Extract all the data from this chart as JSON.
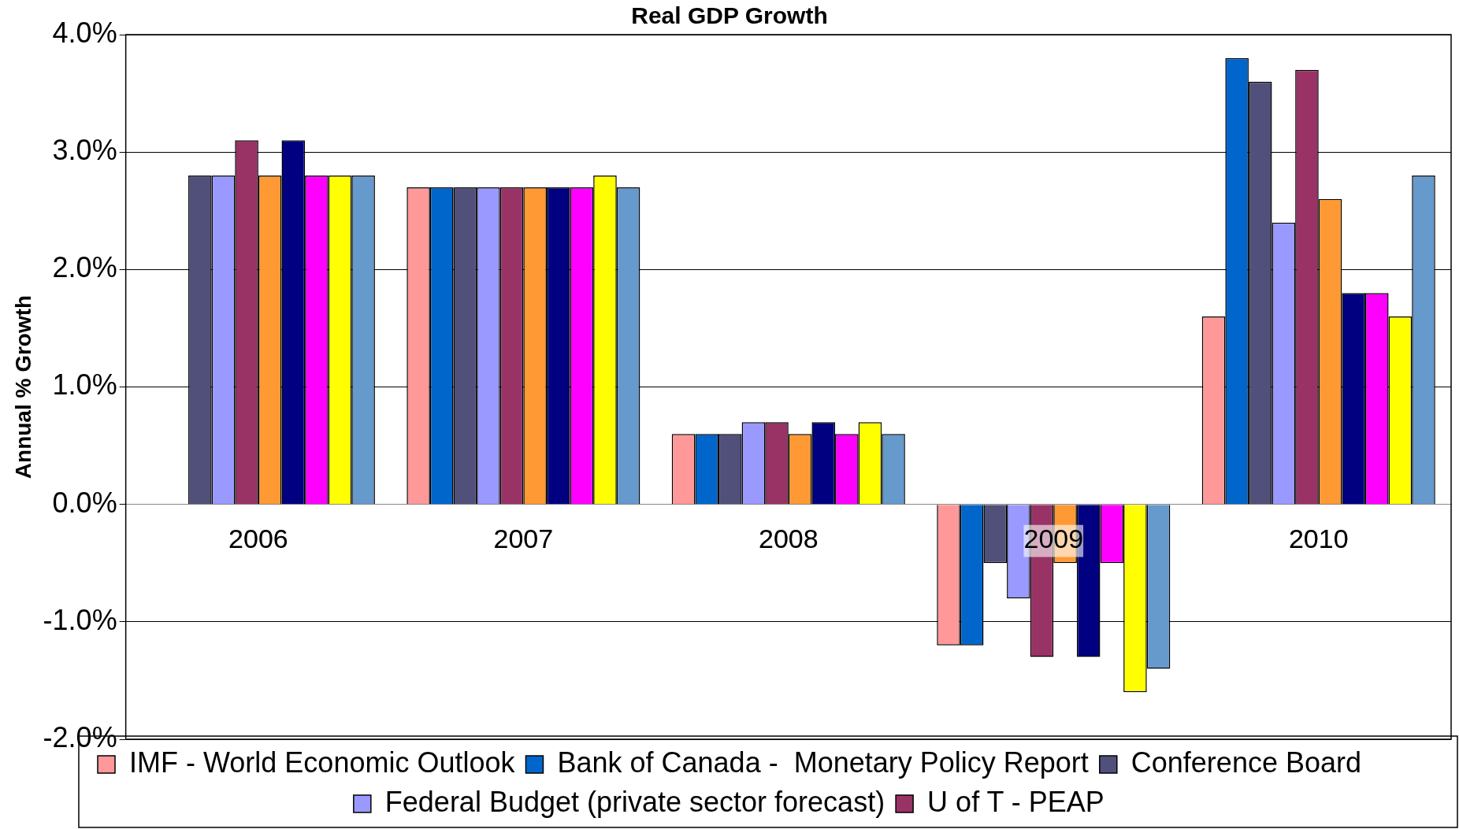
{
  "chart_data": {
    "type": "bar",
    "title": "Real GDP Growth",
    "ylabel": "Annual % Growth",
    "categories": [
      "2006",
      "2007",
      "2008",
      "2009",
      "2010"
    ],
    "series": [
      {
        "name": "IMF - World Economic Outlook",
        "color": "#ff9999",
        "values": [
          null,
          2.7,
          0.6,
          -1.2,
          1.6
        ]
      },
      {
        "name": "Bank of Canada -  Monetary Policy Report",
        "color": "#0066cc",
        "values": [
          null,
          2.7,
          0.6,
          -1.2,
          3.8
        ]
      },
      {
        "name": "Conference Board",
        "color": "#50507a",
        "values": [
          2.8,
          2.7,
          0.6,
          -0.5,
          3.6
        ]
      },
      {
        "name": "Federal Budget (private sector forecast)",
        "color": "#9999ff",
        "values": [
          2.8,
          2.7,
          0.7,
          -0.8,
          2.4
        ]
      },
      {
        "name": "U of T - PEAP",
        "color": "#993366",
        "values": [
          3.1,
          2.7,
          0.7,
          -1.3,
          3.7
        ]
      },
      {
        "color": "#ff9933",
        "values": [
          2.8,
          2.7,
          0.6,
          -0.5,
          2.6
        ]
      },
      {
        "color": "#000080",
        "values": [
          3.1,
          2.7,
          0.7,
          -1.3,
          1.8
        ]
      },
      {
        "color": "#ff00ff",
        "values": [
          2.8,
          2.7,
          0.6,
          -0.5,
          1.8
        ]
      },
      {
        "color": "#ffff00",
        "values": [
          2.8,
          2.8,
          0.7,
          -1.6,
          1.6
        ]
      },
      {
        "color": "#6699cc",
        "values": [
          2.8,
          2.7,
          0.6,
          -1.4,
          2.8
        ]
      }
    ],
    "ylim": [
      -2,
      4
    ],
    "yticks": [
      {
        "value": -2,
        "label": "-2.0%"
      },
      {
        "value": -1,
        "label": "-1.0%"
      },
      {
        "value": 0,
        "label": "0.0%"
      },
      {
        "value": 1,
        "label": "1.0%"
      },
      {
        "value": 2,
        "label": "2.0%"
      },
      {
        "value": 3,
        "label": "3.0%"
      },
      {
        "value": 4,
        "label": "4.0%"
      }
    ],
    "grid": "y",
    "legend": "bottom"
  }
}
